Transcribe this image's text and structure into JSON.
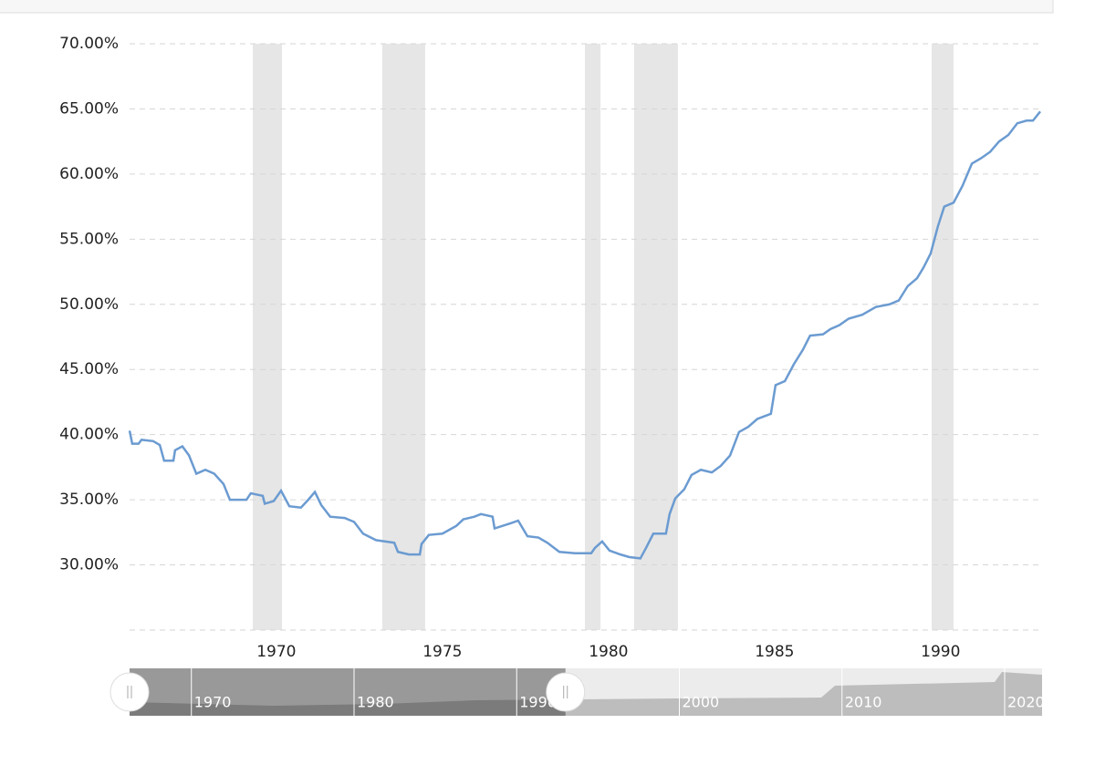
{
  "chart_data": {
    "type": "line",
    "xlim": [
      1965.58,
      1993.0
    ],
    "xticks": [
      1970,
      1975,
      1980,
      1985,
      1990
    ],
    "ylim": [
      25,
      70
    ],
    "yticks": [
      {
        "value": 30,
        "label": "30.00%"
      },
      {
        "value": 35,
        "label": "35.00%"
      },
      {
        "value": 40,
        "label": "40.00%"
      },
      {
        "value": 45,
        "label": "45.00%"
      },
      {
        "value": 50,
        "label": "50.00%"
      },
      {
        "value": 55,
        "label": "55.00%"
      },
      {
        "value": 60,
        "label": "60.00%"
      },
      {
        "value": 65,
        "label": "65.00%"
      },
      {
        "value": 70,
        "label": "70.00%"
      }
    ],
    "grid": true,
    "recessions": [
      [
        1969.29,
        1970.17
      ],
      [
        1973.19,
        1974.48
      ],
      [
        1979.29,
        1979.76
      ],
      [
        1980.77,
        1982.09
      ],
      [
        1989.73,
        1990.39
      ]
    ],
    "series": [
      {
        "color": "#6b9bd1",
        "x": [
          1965.58,
          1965.66,
          1965.85,
          1965.94,
          1966.29,
          1966.49,
          1966.62,
          1966.9,
          1966.95,
          1967.17,
          1967.37,
          1967.59,
          1967.86,
          1968.13,
          1968.41,
          1968.6,
          1969.1,
          1969.23,
          1969.59,
          1969.65,
          1969.92,
          1970.14,
          1970.39,
          1970.74,
          1970.96,
          1971.16,
          1971.35,
          1971.62,
          1972.06,
          1972.34,
          1972.61,
          1973.0,
          1973.55,
          1973.66,
          1973.99,
          1974.32,
          1974.37,
          1974.59,
          1975.0,
          1975.42,
          1975.63,
          1975.96,
          1976.16,
          1976.51,
          1976.57,
          1977.06,
          1977.28,
          1977.56,
          1977.89,
          1978.16,
          1978.52,
          1978.99,
          1979.48,
          1979.59,
          1979.81,
          1980.03,
          1980.36,
          1980.63,
          1980.96,
          1981.13,
          1981.35,
          1981.73,
          1981.84,
          1982.01,
          1982.28,
          1982.5,
          1982.78,
          1983.11,
          1983.38,
          1983.66,
          1983.93,
          1984.21,
          1984.48,
          1984.89,
          1985.03,
          1985.31,
          1985.58,
          1985.85,
          1986.07,
          1986.46,
          1986.68,
          1986.95,
          1987.23,
          1987.64,
          1988.05,
          1988.46,
          1988.74,
          1989.01,
          1989.29,
          1989.48,
          1989.7,
          1989.92,
          1990.11,
          1990.39,
          1990.66,
          1990.94,
          1991.21,
          1991.49,
          1991.76,
          1992.04,
          1992.31,
          1992.59,
          1992.78,
          1993.0
        ],
        "values": [
          40.3,
          39.3,
          39.3,
          39.6,
          39.5,
          39.2,
          38.0,
          38.0,
          38.8,
          39.1,
          38.4,
          37.0,
          37.3,
          37.0,
          36.2,
          35.0,
          35.0,
          35.5,
          35.3,
          34.7,
          34.9,
          35.7,
          34.5,
          34.4,
          35.0,
          35.6,
          34.6,
          33.7,
          33.6,
          33.3,
          32.4,
          31.9,
          31.7,
          31.0,
          30.8,
          30.8,
          31.6,
          32.3,
          32.4,
          33.0,
          33.5,
          33.7,
          33.9,
          33.7,
          32.8,
          33.2,
          33.4,
          32.2,
          32.1,
          31.7,
          31.0,
          30.9,
          30.9,
          31.3,
          31.8,
          31.1,
          30.8,
          30.6,
          30.5,
          31.3,
          32.4,
          32.4,
          33.9,
          35.1,
          35.8,
          36.9,
          37.3,
          37.1,
          37.6,
          38.4,
          40.2,
          40.6,
          41.2,
          41.6,
          43.8,
          44.1,
          45.4,
          46.5,
          47.6,
          47.7,
          48.1,
          48.4,
          48.9,
          49.2,
          49.8,
          50.0,
          50.3,
          51.4,
          52.0,
          52.8,
          53.9,
          56.0,
          57.5,
          57.8,
          59.1,
          60.8,
          61.2,
          61.7,
          62.5,
          63.0,
          63.9,
          64.1,
          64.1,
          64.8
        ]
      }
    ],
    "navigator": {
      "xlim": [
        1966.2,
        2022.3
      ],
      "xticks": [
        1970,
        1980,
        1990,
        2000,
        2010,
        2020
      ],
      "selection": [
        1966.2,
        1993.0
      ]
    }
  }
}
